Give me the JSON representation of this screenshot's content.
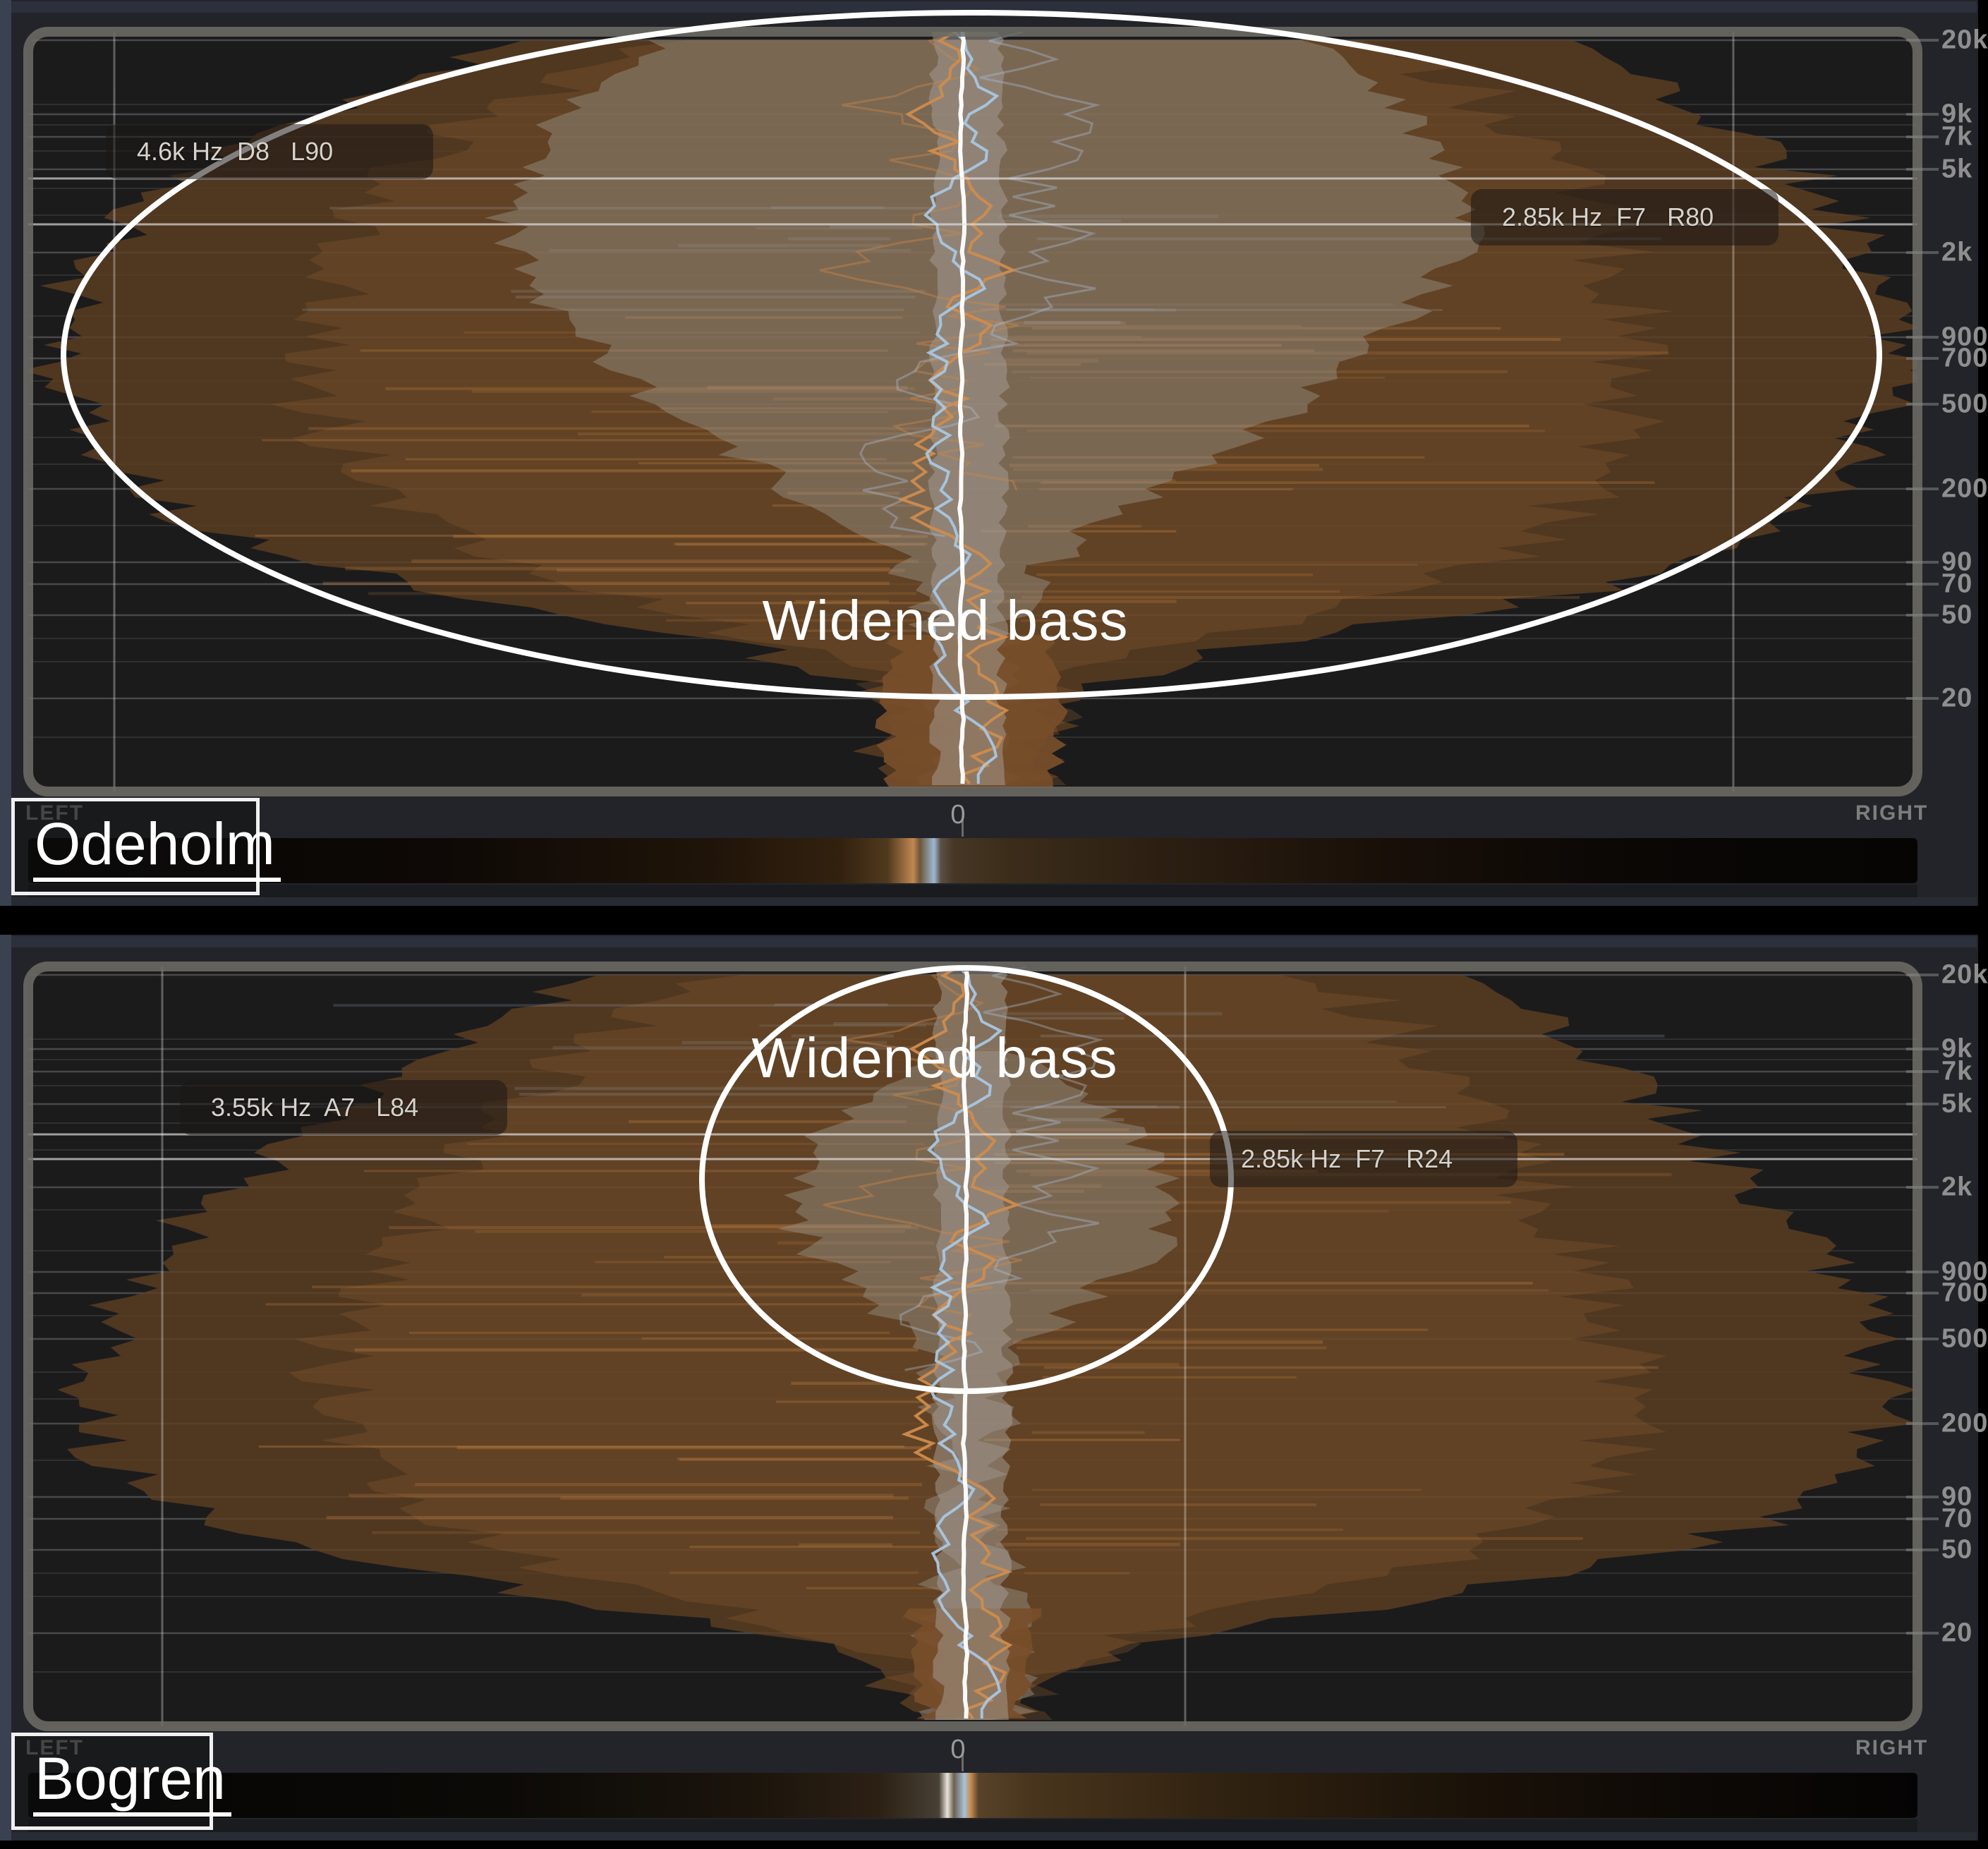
{
  "app": {
    "description": "Stereo frequency analyzer comparison"
  },
  "colors": {
    "accent_orange": "#c98a4f",
    "accent_blue": "#a9c6e2",
    "spectrum_brown": "#5e3e22",
    "overlay_gray": "#98948c",
    "annotation_white": "#ffffff",
    "panel_bg": "#232429",
    "display_bg": "#1b1b1c"
  },
  "panels": [
    {
      "title": "Odeholm",
      "left_label": "LEFT",
      "right_label": "RIGHT",
      "zero_label": "0",
      "annotation": "Widened bass",
      "freqs": [
        "20k",
        "9k",
        "7k",
        "5k",
        "2k",
        "900",
        "700",
        "500",
        "200",
        "90",
        "70",
        "50",
        "20"
      ],
      "markers": [
        "4.6k Hz  D8   L90",
        "2.85k Hz  F7   R80"
      ]
    },
    {
      "title": "Bogren",
      "left_label": "LEFT",
      "right_label": "RIGHT",
      "zero_label": "0",
      "annotation": "Widened bass",
      "freqs": [
        "20k",
        "9k",
        "7k",
        "5k",
        "2k",
        "900",
        "700",
        "500",
        "200",
        "90",
        "70",
        "50",
        "20"
      ],
      "markers": [
        "3.55k Hz  A7   L84",
        "2.85k Hz  F7   R24"
      ]
    }
  ]
}
